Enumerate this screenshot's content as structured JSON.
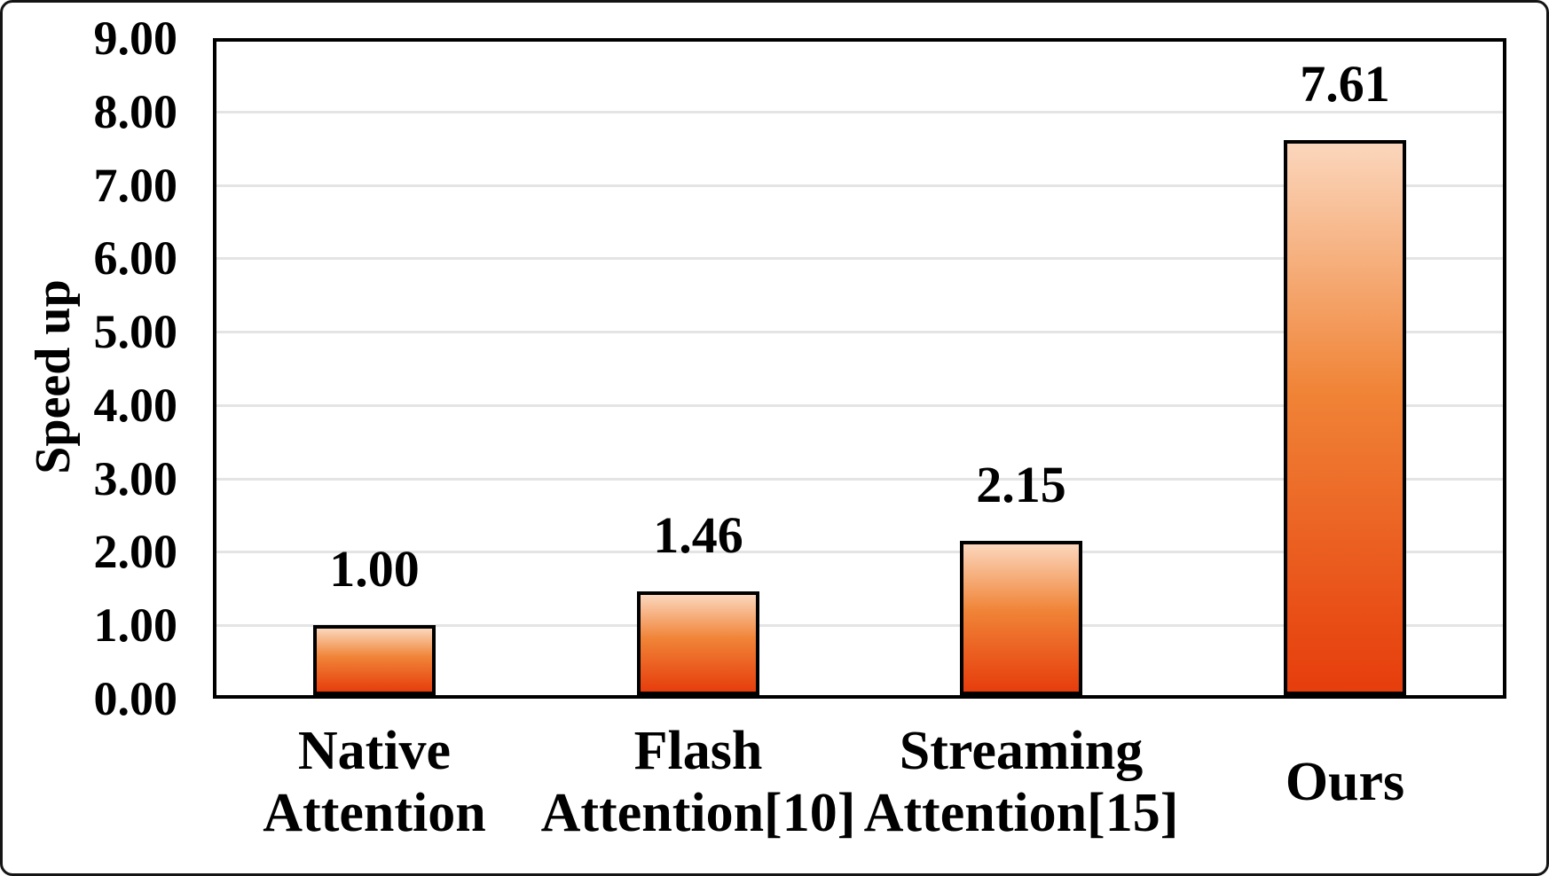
{
  "chart_data": {
    "type": "bar",
    "title": "",
    "xlabel": "",
    "ylabel": "Speed up",
    "categories": [
      "Native Attention",
      "Flash Attention[10]",
      "Streaming Attention[15]",
      "Ours"
    ],
    "category_lines": [
      [
        "Native",
        "Attention"
      ],
      [
        "Flash",
        "Attention[10]"
      ],
      [
        "Streaming",
        "Attention[15]"
      ],
      [
        "Ours"
      ]
    ],
    "values": [
      1.0,
      1.46,
      2.15,
      7.61
    ],
    "value_labels": [
      "1.00",
      "1.46",
      "2.15",
      "7.61"
    ],
    "ylim": [
      0,
      9
    ],
    "y_tick_step": 1,
    "y_tick_labels": [
      "0.00",
      "1.00",
      "2.00",
      "3.00",
      "4.00",
      "5.00",
      "6.00",
      "7.00",
      "8.00",
      "9.00"
    ],
    "grid": "horizontal-only",
    "legend": "none",
    "colors": {
      "bar_gradient_top": "#FBD6BC",
      "bar_gradient_mid": "#F08437",
      "bar_gradient_bottom": "#E63D0C",
      "bar_border": "#000000",
      "gridline": "#E4E4E4",
      "axis": "#000000",
      "text": "#000000",
      "background": "#FFFFFF"
    }
  }
}
